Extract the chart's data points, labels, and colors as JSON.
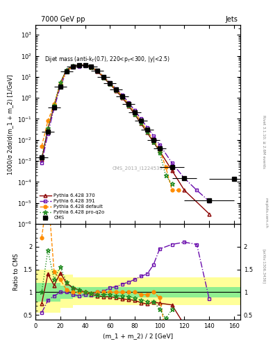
{
  "title_left": "7000 GeV pp",
  "title_right": "Jets",
  "annotation": "Dijet mass (anti-k_{T}(0.7), 220<p_{T}<300, |y|<2.5)",
  "watermark": "CMS_2013_I1224539",
  "xlabel": "(m_1 + m_2) / 2 [GeV]",
  "ylabel_main": "1000/σ 2dσ/d(m_1 + m_2) [1/GeV]",
  "ylabel_ratio": "Ratio to CMS",
  "xlim": [
    0,
    165
  ],
  "ylim_main": [
    1e-06,
    3000.0
  ],
  "ylim_ratio": [
    0.4,
    2.5
  ],
  "cms_x": [
    5,
    10,
    15,
    20,
    25,
    30,
    35,
    40,
    45,
    50,
    55,
    60,
    65,
    70,
    75,
    80,
    85,
    90,
    95,
    100,
    110,
    120,
    140,
    160
  ],
  "cms_y": [
    0.0015,
    0.025,
    0.35,
    3.5,
    18,
    30,
    35,
    35,
    30,
    20,
    10,
    5,
    2.5,
    1.2,
    0.5,
    0.2,
    0.08,
    0.03,
    0.01,
    0.004,
    0.0005,
    0.00015,
    1.3e-05,
    0.00014
  ],
  "cms_xerr": [
    5,
    5,
    5,
    5,
    5,
    5,
    5,
    5,
    5,
    5,
    5,
    5,
    5,
    5,
    5,
    5,
    5,
    5,
    5,
    5,
    10,
    10,
    20,
    20
  ],
  "cms_yerr": [
    0.0003,
    0.005,
    0.05,
    0.5,
    2,
    3,
    3,
    3,
    2.5,
    1.5,
    0.8,
    0.4,
    0.2,
    0.1,
    0.05,
    0.02,
    0.008,
    0.003,
    0.001,
    0.0004,
    6e-05,
    2e-05,
    2e-06,
    2e-05
  ],
  "p370_x": [
    5,
    10,
    15,
    20,
    25,
    30,
    35,
    40,
    45,
    50,
    55,
    60,
    65,
    70,
    75,
    80,
    85,
    90,
    95,
    100,
    110,
    120,
    140
  ],
  "p370_y": [
    0.0012,
    0.035,
    0.4,
    5,
    22,
    33,
    37,
    36,
    28,
    18,
    9,
    4.5,
    2.2,
    1.0,
    0.42,
    0.16,
    0.06,
    0.022,
    0.008,
    0.003,
    0.00035,
    4e-05,
    3e-06
  ],
  "p391_x": [
    5,
    10,
    15,
    20,
    25,
    30,
    35,
    40,
    45,
    50,
    55,
    60,
    65,
    70,
    75,
    80,
    85,
    90,
    95,
    100,
    110,
    120,
    130,
    140
  ],
  "p391_y": [
    0.0008,
    0.02,
    0.32,
    3.5,
    18,
    28,
    32,
    33,
    28,
    20,
    10,
    5.5,
    2.8,
    1.4,
    0.6,
    0.25,
    0.1,
    0.04,
    0.016,
    0.006,
    0.0008,
    0.00015,
    4e-05,
    1.2e-05
  ],
  "pdef_x": [
    5,
    10,
    15,
    20,
    25,
    30,
    35,
    40,
    45,
    50,
    55,
    60,
    65,
    70,
    75,
    80,
    85,
    90,
    95,
    100,
    105,
    110,
    115
  ],
  "pdef_y": [
    0.005,
    0.08,
    0.5,
    4.5,
    19,
    30,
    35,
    35,
    29,
    20,
    10,
    5,
    2.5,
    1.2,
    0.5,
    0.2,
    0.075,
    0.028,
    0.01,
    0.0035,
    0.0005,
    4e-05,
    4e-05
  ],
  "pq2o_x": [
    5,
    10,
    15,
    20,
    25,
    30,
    35,
    40,
    45,
    50,
    55,
    60,
    65,
    70,
    75,
    80,
    85,
    90,
    95,
    100,
    105,
    110
  ],
  "pq2o_y": [
    0.0015,
    0.035,
    0.45,
    5.5,
    22,
    33,
    37,
    36,
    29,
    19,
    9.5,
    4.8,
    2.3,
    1.1,
    0.45,
    0.17,
    0.065,
    0.024,
    0.008,
    0.0025,
    0.0002,
    8e-05
  ],
  "ratio_p370_x": [
    5,
    10,
    15,
    20,
    25,
    30,
    35,
    40,
    45,
    50,
    55,
    60,
    65,
    70,
    75,
    80,
    85,
    90,
    95,
    100,
    110,
    120,
    140
  ],
  "ratio_p370_y": [
    0.75,
    1.4,
    1.15,
    1.42,
    1.2,
    1.1,
    1.05,
    1.0,
    0.95,
    0.92,
    0.9,
    0.9,
    0.88,
    0.85,
    0.84,
    0.82,
    0.77,
    0.74,
    0.78,
    0.76,
    0.72,
    0.28,
    0.25
  ],
  "ratio_p391_x": [
    5,
    10,
    15,
    20,
    25,
    30,
    35,
    40,
    45,
    50,
    55,
    60,
    65,
    70,
    75,
    80,
    85,
    90,
    95,
    100,
    110,
    120,
    130,
    140
  ],
  "ratio_p391_y": [
    0.55,
    0.82,
    0.92,
    1.0,
    1.0,
    0.95,
    0.92,
    0.95,
    0.95,
    1.0,
    1.02,
    1.1,
    1.12,
    1.18,
    1.22,
    1.28,
    1.35,
    1.4,
    1.6,
    1.95,
    2.05,
    2.1,
    2.05,
    0.85
  ],
  "ratio_pdef_x": [
    5,
    10,
    15,
    20,
    25,
    30,
    35,
    40,
    45,
    50,
    55,
    60,
    65,
    70,
    75,
    80,
    85,
    90,
    95,
    100,
    105,
    110,
    115
  ],
  "ratio_pdef_y": [
    2.2,
    3.2,
    1.45,
    1.28,
    1.05,
    1.0,
    1.0,
    1.0,
    0.98,
    1.0,
    1.0,
    1.0,
    1.0,
    1.0,
    1.0,
    1.0,
    0.95,
    0.95,
    1.0,
    0.88,
    0.1,
    0.08,
    0.08
  ],
  "ratio_pq2o_x": [
    5,
    10,
    15,
    20,
    25,
    30,
    35,
    40,
    45,
    50,
    55,
    60,
    65,
    70,
    75,
    80,
    85,
    90,
    95,
    100,
    105,
    110
  ],
  "ratio_pq2o_y": [
    1.0,
    1.92,
    1.28,
    1.56,
    1.22,
    1.1,
    1.05,
    1.0,
    0.98,
    0.95,
    0.95,
    0.95,
    0.92,
    0.92,
    0.9,
    0.87,
    0.83,
    0.8,
    0.8,
    0.63,
    0.42,
    0.62
  ],
  "green_band_x": [
    0,
    10,
    20,
    30,
    40,
    55,
    65,
    80,
    95,
    110,
    125,
    165
  ],
  "green_band_lo": [
    0.8,
    0.8,
    0.85,
    0.88,
    0.88,
    0.88,
    0.88,
    0.88,
    0.88,
    0.88,
    0.88,
    0.88
  ],
  "green_band_hi": [
    1.2,
    1.2,
    1.15,
    1.12,
    1.12,
    1.12,
    1.12,
    1.12,
    1.12,
    1.12,
    1.12,
    1.12
  ],
  "yellow_band_x": [
    0,
    10,
    20,
    30,
    40,
    55,
    65,
    80,
    95,
    110,
    125,
    165
  ],
  "yellow_band_lo": [
    0.55,
    0.55,
    0.65,
    0.72,
    0.72,
    0.72,
    0.72,
    0.72,
    0.72,
    0.72,
    0.72,
    0.72
  ],
  "yellow_band_hi": [
    1.5,
    1.5,
    1.38,
    1.32,
    1.32,
    1.32,
    1.32,
    1.32,
    1.32,
    1.32,
    1.32,
    1.32
  ],
  "color_cms": "#000000",
  "color_p370": "#8b0000",
  "color_p391": "#6a0dad",
  "color_pdef": "#ff8c00",
  "color_pq2o": "#228b22",
  "green_color": "#90ee90",
  "yellow_color": "#ffff99"
}
